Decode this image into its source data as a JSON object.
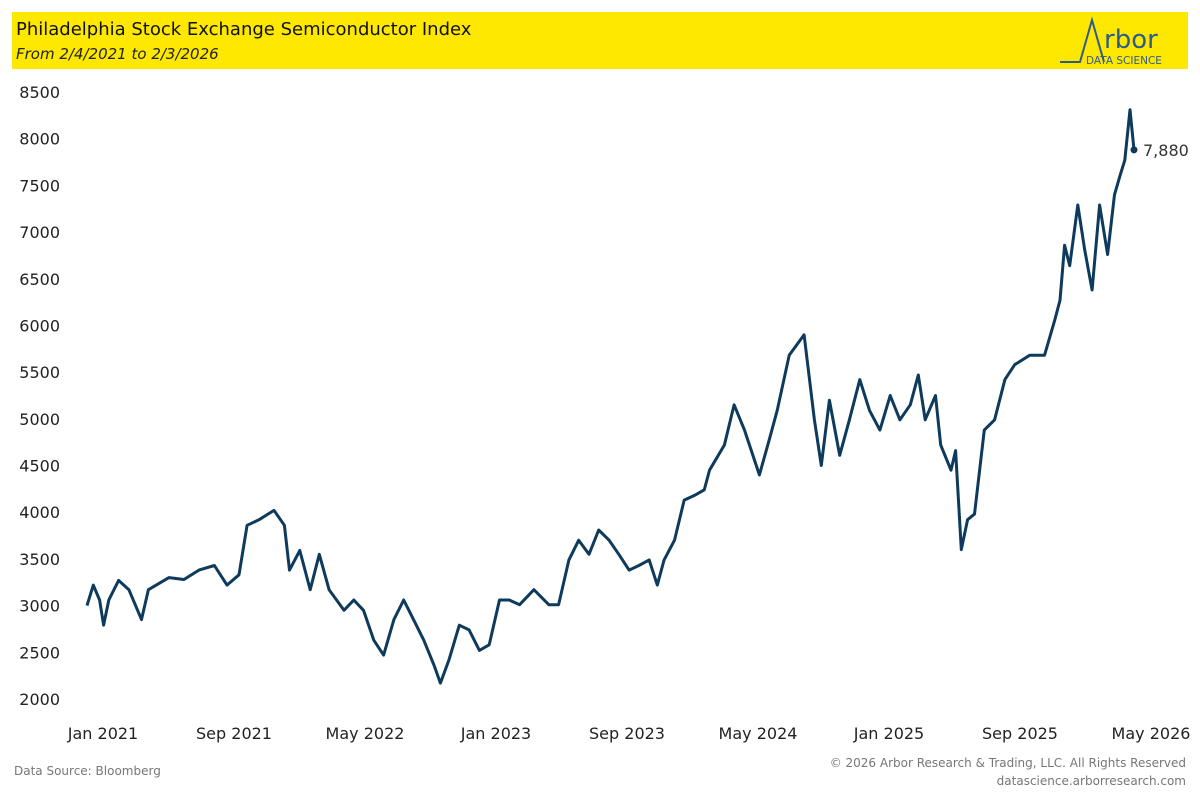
{
  "header": {
    "title": "Philadelphia Stock Exchange Semiconductor Index",
    "subtitle": "From 2/4/2021 to 2/3/2026",
    "background_color": "#FFE800",
    "logo_text": "Arbor",
    "logo_subtext": "DATA SCIENCE"
  },
  "footer": {
    "source": "Data Source: Bloomberg",
    "copyright": "© 2026 Arbor Research & Trading, LLC. All Rights Reserved",
    "website": "datascience.arborresearch.com"
  },
  "chart_data": {
    "type": "line",
    "title": "Philadelphia Stock Exchange Semiconductor Index",
    "xlabel": "",
    "ylabel": "",
    "ylim": [
      2000,
      8500
    ],
    "yticks": [
      "8500",
      "8000",
      "7500",
      "7000",
      "6500",
      "6000",
      "5500",
      "5000",
      "4500",
      "4000",
      "3500",
      "3000",
      "2500",
      "2000"
    ],
    "xticks": [
      "Jan 2021",
      "Sep 2021",
      "May 2022",
      "Jan 2023",
      "Sep 2023",
      "May 2024",
      "Jan 2025",
      "Sep 2025",
      "May 2026"
    ],
    "grid": false,
    "line_color": "#0E3A5C",
    "end_label": "7,880",
    "series": [
      {
        "x": [
          "2021-02-04",
          "2021-02-15",
          "2021-02-26",
          "2021-03-05",
          "2021-03-14",
          "2021-03-31",
          "2021-04-18",
          "2021-05-10",
          "2021-05-22",
          "2021-06-27",
          "2021-07-23",
          "2021-08-18",
          "2021-09-14",
          "2021-10-06",
          "2021-10-27",
          "2021-11-10",
          "2021-12-01",
          "2021-12-27",
          "2022-01-14",
          "2022-01-23",
          "2022-02-10",
          "2022-02-28",
          "2022-03-16",
          "2022-04-02",
          "2022-04-28",
          "2022-05-15",
          "2022-06-01",
          "2022-06-19",
          "2022-07-06",
          "2022-07-24",
          "2022-08-10",
          "2022-08-28",
          "2022-09-14",
          "2022-10-02",
          "2022-10-13",
          "2022-10-28",
          "2022-11-15",
          "2022-12-02",
          "2022-12-20",
          "2023-01-06",
          "2023-01-24",
          "2023-02-10",
          "2023-02-28",
          "2023-03-25",
          "2023-04-20",
          "2023-05-07",
          "2023-05-25",
          "2023-06-11",
          "2023-06-29",
          "2023-07-16",
          "2023-08-03",
          "2023-08-20",
          "2023-09-07",
          "2023-09-24",
          "2023-10-12",
          "2023-10-26",
          "2023-11-07",
          "2023-11-25",
          "2023-12-12",
          "2023-12-30",
          "2024-01-16",
          "2024-01-25",
          "2024-02-20",
          "2024-03-08",
          "2024-03-26",
          "2024-04-21",
          "2024-05-08",
          "2024-05-22",
          "2024-06-12",
          "2024-07-08",
          "2024-07-26",
          "2024-08-07",
          "2024-08-21",
          "2024-09-08",
          "2024-09-25",
          "2024-10-13",
          "2024-10-30",
          "2024-11-17",
          "2024-12-05",
          "2024-12-22",
          "2025-01-09",
          "2025-01-23",
          "2025-02-04",
          "2025-02-22",
          "2025-03-03",
          "2025-03-21",
          "2025-03-29",
          "2025-04-08",
          "2025-04-19",
          "2025-05-01",
          "2025-05-18",
          "2025-06-05",
          "2025-06-23",
          "2025-07-10",
          "2025-08-05",
          "2025-08-31",
          "2025-09-18",
          "2025-09-27",
          "2025-10-05",
          "2025-10-14",
          "2025-10-28",
          "2025-11-09",
          "2025-11-22",
          "2025-12-05",
          "2025-12-19",
          "2025-12-31",
          "2026-01-10",
          "2026-01-18",
          "2026-01-27",
          "2026-02-03"
        ],
        "y": [
          3000,
          3220,
          3060,
          2790,
          3060,
          3270,
          3170,
          2850,
          3170,
          3300,
          3280,
          3380,
          3430,
          3220,
          3330,
          3860,
          3920,
          4020,
          3860,
          3380,
          3590,
          3170,
          3550,
          3170,
          2950,
          3060,
          2950,
          2630,
          2470,
          2850,
          3060,
          2840,
          2630,
          2360,
          2170,
          2420,
          2790,
          2740,
          2520,
          2580,
          3060,
          3060,
          3010,
          3170,
          3010,
          3010,
          3490,
          3700,
          3550,
          3810,
          3700,
          3550,
          3380,
          3430,
          3490,
          3220,
          3490,
          3700,
          4130,
          4180,
          4240,
          4450,
          4720,
          5150,
          4880,
          4400,
          4770,
          5090,
          5680,
          5900,
          4990,
          4500,
          5200,
          4610,
          4990,
          5420,
          5090,
          4880,
          5250,
          4990,
          5150,
          5470,
          4990,
          5250,
          4720,
          4450,
          4660,
          3600,
          3920,
          3980,
          4880,
          4990,
          5420,
          5580,
          5680,
          5680,
          6060,
          6270,
          6860,
          6640,
          7290,
          6810,
          6380,
          7290,
          6760,
          7400,
          7610,
          7770,
          8310,
          7880
        ]
      }
    ]
  }
}
